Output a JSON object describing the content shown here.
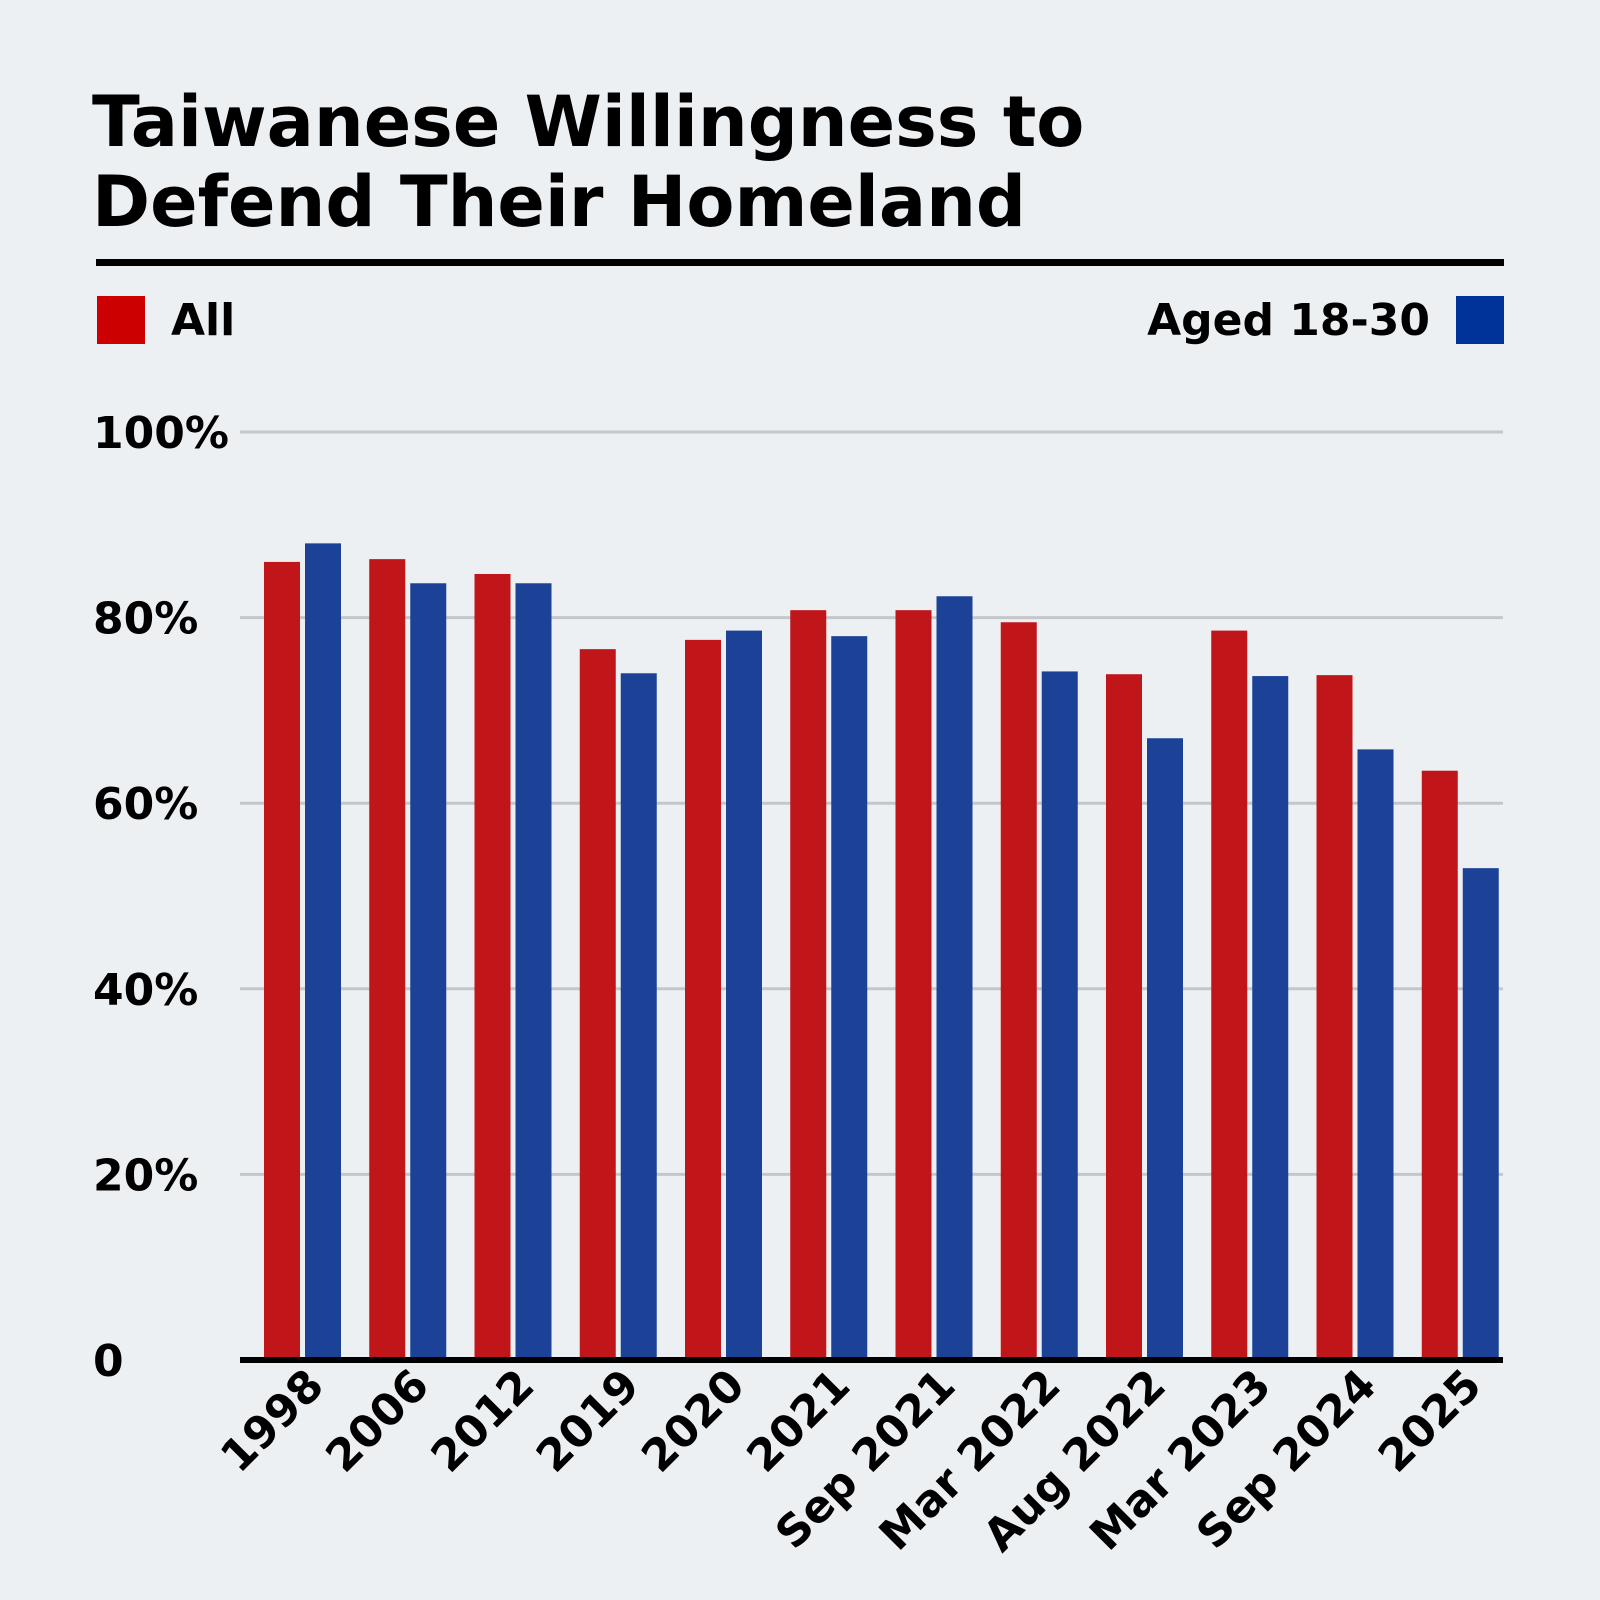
{
  "chart_data": {
    "type": "bar",
    "title_lines": [
      "Taiwanese Willingness to",
      "Defend Their Homeland"
    ],
    "categories": [
      "1998",
      "2006",
      "2012",
      "2019",
      "2020",
      "2021",
      "Sep 2021",
      "Mar 2022",
      "Aug 2022",
      "Mar 2023",
      "Sep 2024",
      "2025"
    ],
    "series": [
      {
        "name": "All",
        "color": "#c0161a",
        "legend_color": "#cc0000",
        "values": [
          86,
          86.3,
          84.7,
          76.6,
          77.6,
          80.8,
          80.8,
          79.5,
          73.9,
          78.6,
          73.8,
          63.5
        ]
      },
      {
        "name": "Aged 18-30",
        "color": "#1b4297",
        "legend_color": "#003399",
        "values": [
          88,
          83.7,
          83.7,
          74,
          78.6,
          78,
          82.3,
          74.2,
          67,
          73.7,
          65.8,
          53
        ]
      }
    ],
    "ylim": [
      0,
      100
    ],
    "yticks": [
      0,
      20,
      40,
      60,
      80,
      100
    ],
    "ytick_labels": [
      "0",
      "20%",
      "40%",
      "60%",
      "80%",
      "100%"
    ],
    "xlabel": "",
    "ylabel": "",
    "grid": true,
    "legend": [
      "top-left",
      "top-right"
    ]
  }
}
